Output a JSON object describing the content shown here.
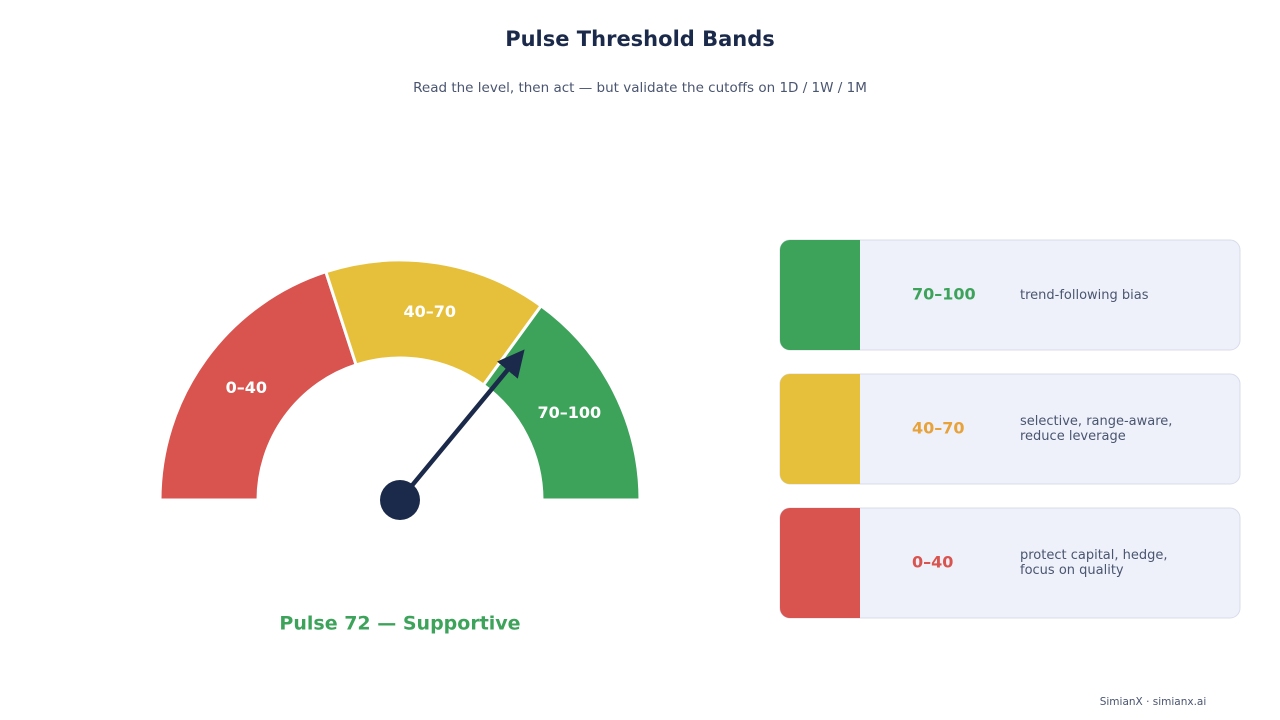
{
  "chart_data": {
    "type": "gauge",
    "title": "Pulse Threshold Bands",
    "subtitle": "Read the level, then act — but validate the cutoffs on 1D / 1W / 1M",
    "ylim": [
      0,
      100
    ],
    "value": 72,
    "value_label": "Pulse 72 — Supportive",
    "value_color": "#3da35a",
    "needle_color": "#1b2a4a",
    "bands": [
      {
        "label": "0–40",
        "from": 0,
        "to": 40,
        "color": "#d9534f",
        "label_color": "#d9534f",
        "description": "protect capital, hedge, focus on quality"
      },
      {
        "label": "40–70",
        "from": 40,
        "to": 70,
        "color": "#e6c03a",
        "label_color": "#e8a23a",
        "description": "selective, range-aware, reduce leverage"
      },
      {
        "label": "70–100",
        "from": 70,
        "to": 100,
        "color": "#3da35a",
        "label_color": "#3da35a",
        "description": "trend-following bias"
      }
    ],
    "footer": "SimianX · simianx.ai"
  }
}
